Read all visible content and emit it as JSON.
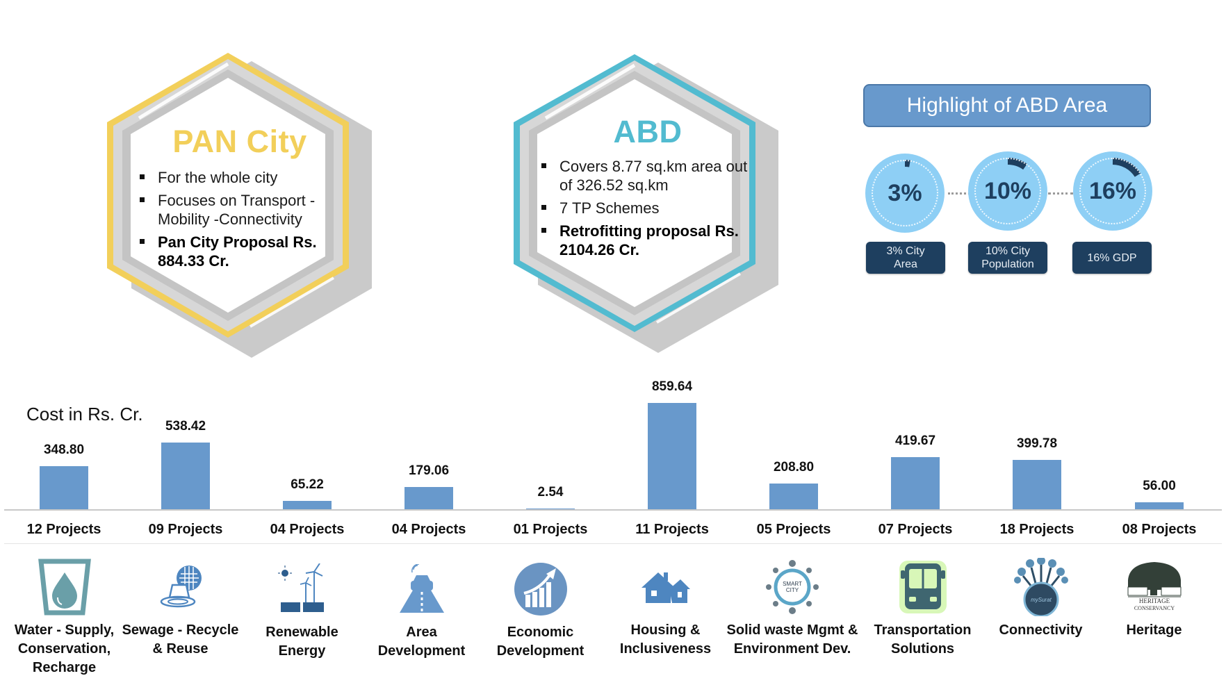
{
  "pan_city": {
    "title": "PAN City",
    "accent": "#F2CF5A",
    "bullets": [
      {
        "text": "For the whole city",
        "bold": false
      },
      {
        "text": "Focuses on Transport - Mobility -Connectivity",
        "bold": false
      },
      {
        "text": "Pan City Proposal Rs. 884.33 Cr.",
        "bold": true
      }
    ]
  },
  "abd": {
    "title": "ABD",
    "accent": "#52BBD0",
    "bullets": [
      {
        "text": "Covers 8.77 sq.km area out of 326.52 sq.km",
        "bold": false
      },
      {
        "text": "7 TP Schemes",
        "bold": false
      },
      {
        "text": "Retrofitting proposal Rs. 2104.26 Cr.",
        "bold": true
      }
    ]
  },
  "highlight": {
    "title": "Highlight of ABD Area",
    "colors": {
      "header": "#6899CC",
      "circle": "#8ECFF5",
      "dark": "#1E3F5F"
    },
    "items": [
      {
        "value": "3%",
        "label_line1": "3% City",
        "label_line2": "Area",
        "pct": 3
      },
      {
        "value": "10%",
        "label_line1": "10% City",
        "label_line2": "Population",
        "pct": 10
      },
      {
        "value": "16%",
        "label_line1": "16% GDP",
        "label_line2": "",
        "pct": 16
      }
    ]
  },
  "chart_data": {
    "type": "bar",
    "title": "",
    "xlabel": "",
    "ylabel": "Cost in Rs. Cr.",
    "ylim": [
      0,
      900
    ],
    "grid": false,
    "bar_color": "#6899CC",
    "categories": [
      "Water - Supply, Conservation, Recharge",
      "Sewage - Recycle & Reuse",
      "Renewable Energy",
      "Area Development",
      "Economic Development",
      "Housing & Inclusiveness",
      "Solid waste Mgmt & Environment Dev.",
      "Transportation Solutions",
      "Connectivity",
      "Heritage"
    ],
    "values": [
      348.8,
      538.42,
      65.22,
      179.06,
      2.54,
      859.64,
      208.8,
      419.67,
      399.78,
      56.0
    ],
    "value_labels": [
      "348.80",
      "538.42",
      "65.22",
      "179.06",
      "2.54",
      "859.64",
      "208.80",
      "419.67",
      "399.78",
      "56.00"
    ],
    "project_counts": [
      "12 Projects",
      "09 Projects",
      "04 Projects",
      "04 Projects",
      "01 Projects",
      "11 Projects",
      "05 Projects",
      "07 Projects",
      "18 Projects",
      "08 Projects"
    ]
  },
  "categories": [
    {
      "label_lines": [
        "Water - Supply,",
        "Conservation,",
        "Recharge"
      ],
      "icon": "water-drop-glass-icon"
    },
    {
      "label_lines": [
        "Sewage - Recycle",
        "& Reuse"
      ],
      "icon": "sewage-recycle-icon"
    },
    {
      "label_lines": [
        "Renewable",
        "Energy"
      ],
      "icon": "solar-wind-energy-icon"
    },
    {
      "label_lines": [
        "Area",
        "Development"
      ],
      "icon": "smart-road-car-icon"
    },
    {
      "label_lines": [
        "Economic",
        "Development"
      ],
      "icon": "growth-chart-icon"
    },
    {
      "label_lines": [
        "Housing &",
        "Inclusiveness"
      ],
      "icon": "houses-icon"
    },
    {
      "label_lines": [
        "Solid waste Mgmt &",
        "Environment Dev."
      ],
      "icon": "smart-city-hub-icon",
      "icon_text": "SMART CITY"
    },
    {
      "label_lines": [
        "Transportation",
        "Solutions"
      ],
      "icon": "bus-icon"
    },
    {
      "label_lines": [
        "Connectivity"
      ],
      "icon": "mysurat-network-icon",
      "icon_text": "mySurat"
    },
    {
      "label_lines": [
        "Heritage"
      ],
      "icon": "heritage-conservancy-icon",
      "icon_text": "HERITAGE CONSERVANCY"
    }
  ]
}
